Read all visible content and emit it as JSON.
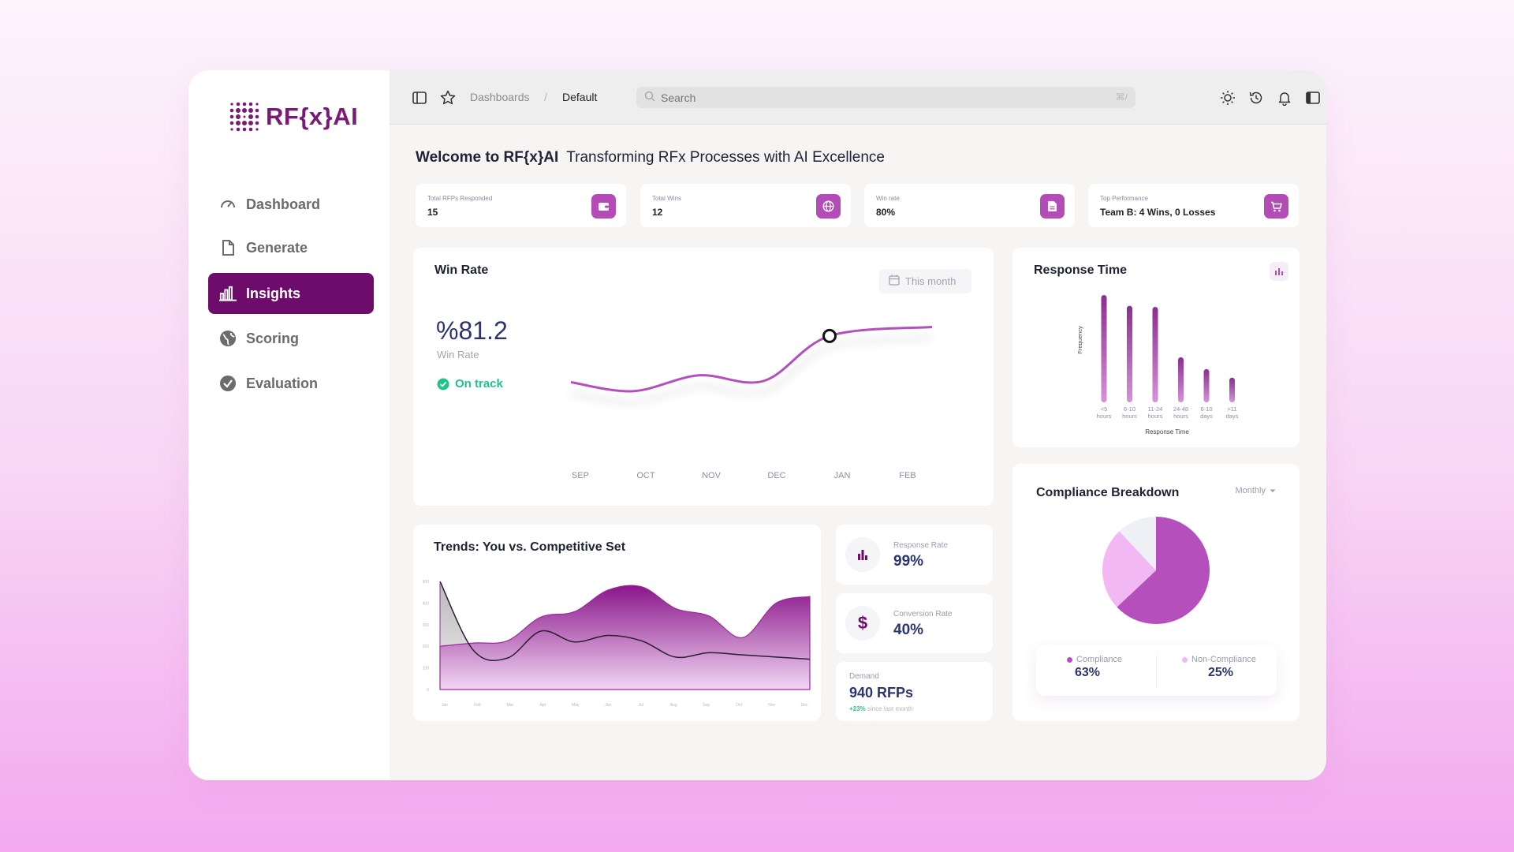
{
  "brand": {
    "name": "RF{x}AI"
  },
  "sidebar": {
    "items": [
      {
        "label": "Dashboard",
        "icon": "gauge-icon",
        "active": false
      },
      {
        "label": "Generate",
        "icon": "file-icon",
        "active": false
      },
      {
        "label": "Insights",
        "icon": "bar-chart-icon",
        "active": true
      },
      {
        "label": "Scoring",
        "icon": "globe-icon",
        "active": false
      },
      {
        "label": "Evaluation",
        "icon": "check-circle-icon",
        "active": false
      }
    ]
  },
  "topbar": {
    "breadcrumb": [
      "Dashboards",
      "Default"
    ],
    "separator": "/",
    "search": {
      "placeholder": "Search",
      "shortcut": "⌘/"
    }
  },
  "welcome": {
    "title": "Welcome to RF{x}AI",
    "subtitle": "Transforming RFx Processes with AI Excellence"
  },
  "stats": [
    {
      "label": "Total RFPs Responded",
      "value": "15",
      "icon": "wallet-icon"
    },
    {
      "label": "Total Wins",
      "value": "12",
      "icon": "globe-icon"
    },
    {
      "label": "Win rate",
      "value": "80%",
      "icon": "document-icon"
    },
    {
      "label": "Top Performance",
      "value": "Team B: 4 Wins, 0 Losses",
      "icon": "cart-icon"
    }
  ],
  "win_rate": {
    "title": "Win Rate",
    "period_button": "This month",
    "value": "%81.2",
    "value_label": "Win Rate",
    "status": "On track"
  },
  "response_time": {
    "title": "Response Time",
    "ylabel": "Frequency",
    "xlabel": "Response Time"
  },
  "trends": {
    "title": "Trends: You vs. Competitive Set"
  },
  "mini_stats": {
    "response_rate": {
      "label": "Response Rate",
      "value": "99%"
    },
    "conversion_rate": {
      "label": "Conversion Rate",
      "value": "40%"
    },
    "demand": {
      "label": "Demand",
      "value": "940 RFPs",
      "delta": "+23%",
      "delta_note": "since last month"
    }
  },
  "compliance": {
    "title": "Compliance Breakdown",
    "period": "Monthly",
    "legend": [
      {
        "label": "Compliance",
        "value": "63%",
        "color": "#b54fbc"
      },
      {
        "label": "Non-Compliance",
        "value": "25%",
        "color": "#f2b8f4"
      }
    ]
  },
  "colors": {
    "accent": "#6e0c6c",
    "brand": "#7a1a78",
    "chart": "#b54fbc",
    "positive": "#1fc48b"
  },
  "chart_data": [
    {
      "type": "line",
      "categories": [
        "SEP",
        "OCT",
        "NOV",
        "DEC",
        "JAN",
        "FEB"
      ],
      "values": [
        0.08,
        -0.05,
        0.18,
        0.1,
        0.75,
        0.88
      ],
      "highlight_index": 4,
      "ylim": [
        -0.2,
        1.0
      ],
      "grid": false
    },
    {
      "type": "bar",
      "categories": [
        "<5 hours",
        "6-10 hours",
        "11-24 hours",
        "24-48 hours",
        "6-10 days",
        ">11 days"
      ],
      "values": [
        100,
        90,
        89,
        42,
        31,
        23
      ],
      "xlabel": "Response Time",
      "ylabel": "Frequency",
      "ylim": [
        0,
        100
      ]
    },
    {
      "type": "area",
      "categories": [
        "Jan",
        "Feb",
        "Mar",
        "Apr",
        "May",
        "Jun",
        "Jul",
        "Aug",
        "Sep",
        "Oct",
        "Nov",
        "Dec"
      ],
      "yticks": [
        "0",
        "100",
        "200",
        "300",
        "400",
        "500"
      ],
      "ylim": [
        0,
        500
      ],
      "series": [
        {
          "values": [
            200,
            215,
            225,
            335,
            360,
            460,
            475,
            375,
            340,
            240,
            400,
            430
          ]
        },
        {
          "values": [
            500,
            180,
            145,
            270,
            220,
            250,
            225,
            150,
            170,
            160,
            150,
            140
          ]
        }
      ]
    },
    {
      "type": "pie",
      "values": [
        63,
        25,
        12
      ],
      "colors": [
        "#b54fbc",
        "#f2b8f4",
        "#eef0f6"
      ]
    }
  ]
}
